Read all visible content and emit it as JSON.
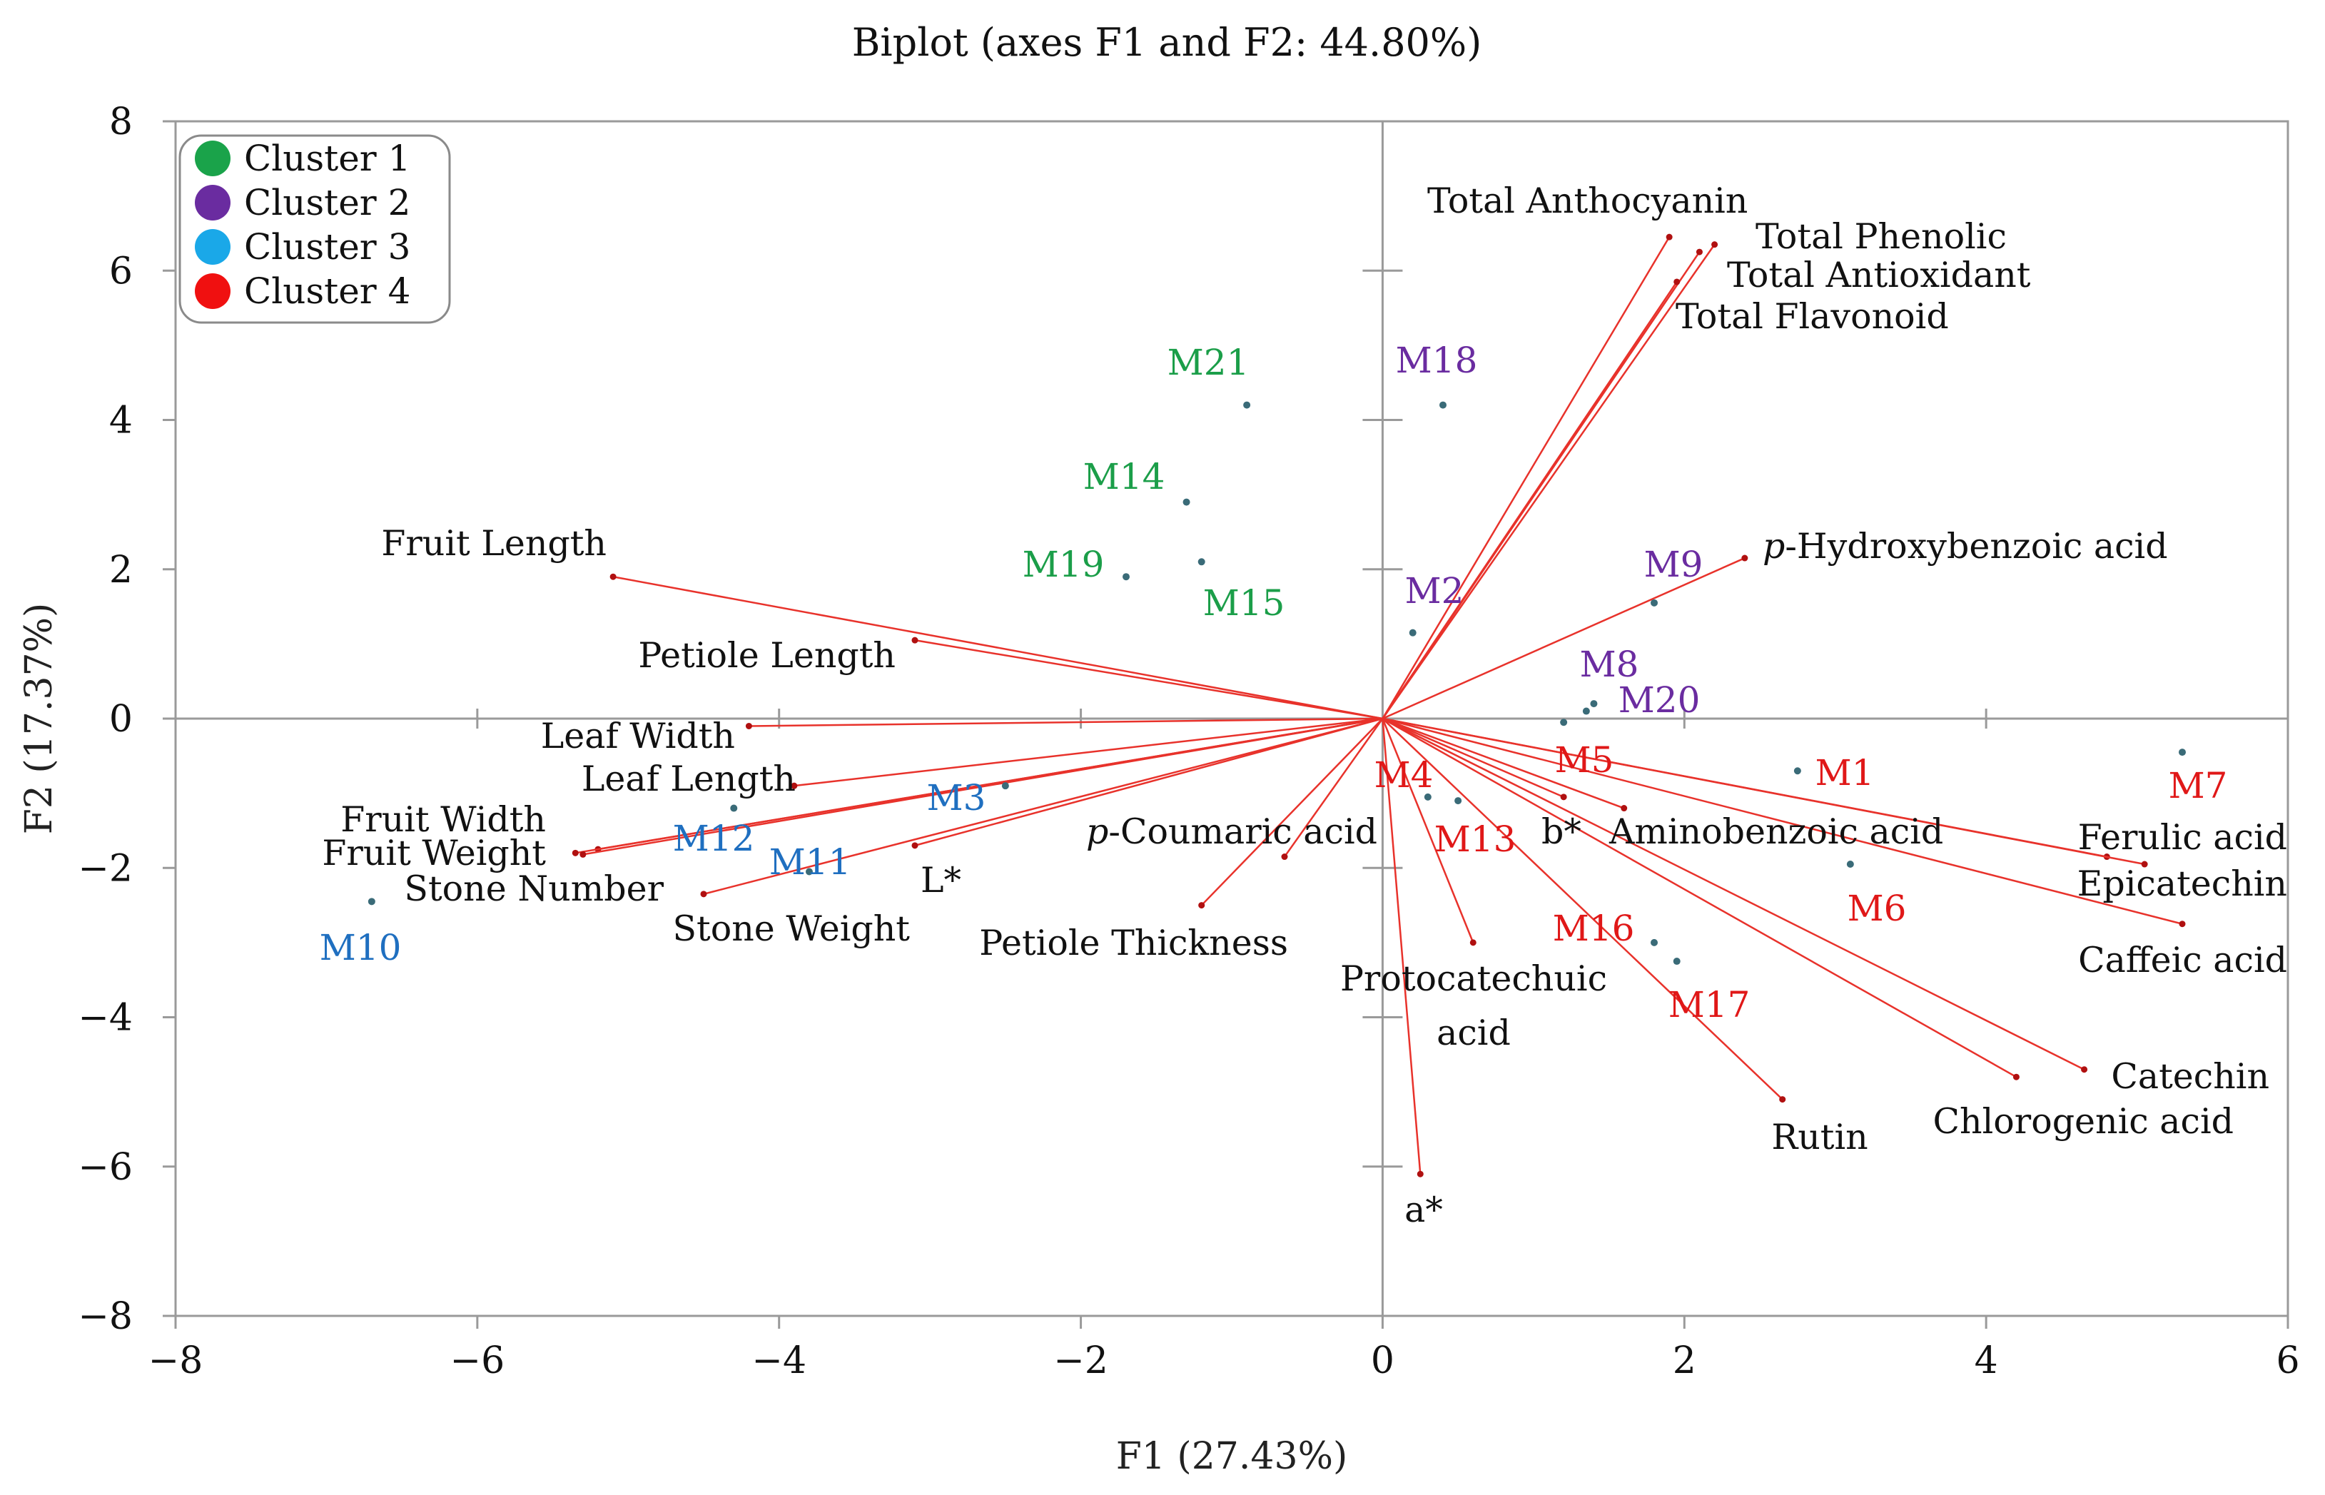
{
  "chart_data": {
    "type": "scatter",
    "subtype": "biplot",
    "title": "Biplot (axes F1 and F2: 44.80%)",
    "xlabel": "F1 (27.43%)",
    "ylabel": "F2 (17.37%)",
    "xlim": [
      -8,
      6
    ],
    "ylim": [
      -8,
      8
    ],
    "x_ticks": [
      -8,
      -6,
      -4,
      -2,
      0,
      2,
      4,
      6
    ],
    "y_ticks": [
      -8,
      -6,
      -4,
      -2,
      0,
      2,
      4,
      6,
      8
    ],
    "x_tick_labels": [
      "−8",
      "−6",
      "−4",
      "−2",
      "0",
      "2",
      "4",
      "6"
    ],
    "y_tick_labels": [
      "−8",
      "−6",
      "−4",
      "−2",
      "0",
      "2",
      "4",
      "6",
      "8"
    ],
    "legend": {
      "position": "top-left",
      "entries": [
        {
          "name": "Cluster 1",
          "color": "#1aa34a"
        },
        {
          "name": "Cluster 2",
          "color": "#6a2ca0"
        },
        {
          "name": "Cluster 3",
          "color": "#1aa8e8"
        },
        {
          "name": "Cluster 4",
          "color": "#f01010"
        }
      ]
    },
    "cluster_text_colors": {
      "Cluster 1": "#1b9e49",
      "Cluster 2": "#6a2ca0",
      "Cluster 3": "#1f6fc0",
      "Cluster 4": "#e01818"
    },
    "vector_color": "#e8322b",
    "observations": [
      {
        "name": "M21",
        "cluster": "Cluster 1",
        "x": -0.9,
        "y": 4.2
      },
      {
        "name": "M14",
        "cluster": "Cluster 1",
        "x": -1.3,
        "y": 2.9
      },
      {
        "name": "M19",
        "cluster": "Cluster 1",
        "x": -1.7,
        "y": 1.9
      },
      {
        "name": "M15",
        "cluster": "Cluster 1",
        "x": -1.2,
        "y": 2.1
      },
      {
        "name": "M18",
        "cluster": "Cluster 2",
        "x": 0.4,
        "y": 4.2
      },
      {
        "name": "M9",
        "cluster": "Cluster 2",
        "x": 1.8,
        "y": 1.55
      },
      {
        "name": "M2",
        "cluster": "Cluster 2",
        "x": 0.2,
        "y": 1.15
      },
      {
        "name": "M8",
        "cluster": "Cluster 2",
        "x": 1.35,
        "y": 0.1
      },
      {
        "name": "M20",
        "cluster": "Cluster 2",
        "x": 1.4,
        "y": 0.2
      },
      {
        "name": "M10",
        "cluster": "Cluster 3",
        "x": -6.7,
        "y": -2.45
      },
      {
        "name": "M12",
        "cluster": "Cluster 3",
        "x": -4.3,
        "y": -1.2
      },
      {
        "name": "M11",
        "cluster": "Cluster 3",
        "x": -3.8,
        "y": -2.05
      },
      {
        "name": "M3",
        "cluster": "Cluster 3",
        "x": -2.5,
        "y": -0.9
      },
      {
        "name": "M4",
        "cluster": "Cluster 4",
        "x": 0.3,
        "y": -1.05
      },
      {
        "name": "M13",
        "cluster": "Cluster 4",
        "x": 0.5,
        "y": -1.1
      },
      {
        "name": "M5",
        "cluster": "Cluster 4",
        "x": 1.2,
        "y": -0.05
      },
      {
        "name": "M1",
        "cluster": "Cluster 4",
        "x": 2.75,
        "y": -0.7
      },
      {
        "name": "M7",
        "cluster": "Cluster 4",
        "x": 5.3,
        "y": -0.45
      },
      {
        "name": "M6",
        "cluster": "Cluster 4",
        "x": 3.1,
        "y": -1.95
      },
      {
        "name": "M16",
        "cluster": "Cluster 4",
        "x": 1.8,
        "y": -3.0
      },
      {
        "name": "M17",
        "cluster": "Cluster 4",
        "x": 1.95,
        "y": -3.25
      }
    ],
    "variables": [
      {
        "name": "Total Anthocyanin",
        "x": 1.9,
        "y": 6.45
      },
      {
        "name": "Total Phenolic",
        "x": 2.2,
        "y": 6.35
      },
      {
        "name": "Total Antioxidant",
        "x": 2.1,
        "y": 6.25
      },
      {
        "name": "Total Flavonoid",
        "x": 1.95,
        "y": 5.85
      },
      {
        "name": "p-Hydroxybenzoic acid",
        "x": 2.4,
        "y": 2.15
      },
      {
        "name": "Fruit Length",
        "x": -5.1,
        "y": 1.9
      },
      {
        "name": "Petiole Length",
        "x": -3.1,
        "y": 1.05
      },
      {
        "name": "Leaf Width",
        "x": -4.2,
        "y": -0.1
      },
      {
        "name": "Leaf Length",
        "x": -3.9,
        "y": -0.9
      },
      {
        "name": "Fruit Width",
        "x": -5.2,
        "y": -1.75
      },
      {
        "name": "Fruit Weight",
        "x": -5.35,
        "y": -1.8
      },
      {
        "name": "Stone Number",
        "x": -5.3,
        "y": -1.82
      },
      {
        "name": "Stone Weight",
        "x": -4.5,
        "y": -2.35
      },
      {
        "name": "L*",
        "x": -3.1,
        "y": -1.7
      },
      {
        "name": "p-Coumaric acid",
        "x": -0.65,
        "y": -1.85
      },
      {
        "name": "Petiole Thickness",
        "x": -1.2,
        "y": -2.5
      },
      {
        "name": "Protocatechuic acid",
        "x": 0.6,
        "y": -3.0
      },
      {
        "name": "a*",
        "x": 0.25,
        "y": -6.1
      },
      {
        "name": "b*",
        "x": 1.2,
        "y": -1.05
      },
      {
        "name": "Aminobenzoic acid",
        "x": 1.6,
        "y": -1.2
      },
      {
        "name": "Ferulic acid",
        "x": 4.8,
        "y": -1.85
      },
      {
        "name": "Epicatechin",
        "x": 5.05,
        "y": -1.95
      },
      {
        "name": "Caffeic acid",
        "x": 5.3,
        "y": -2.75
      },
      {
        "name": "Catechin",
        "x": 4.65,
        "y": -4.7
      },
      {
        "name": "Chlorogenic acid",
        "x": 4.2,
        "y": -4.8
      },
      {
        "name": "Rutin",
        "x": 2.65,
        "y": -5.1
      }
    ]
  }
}
